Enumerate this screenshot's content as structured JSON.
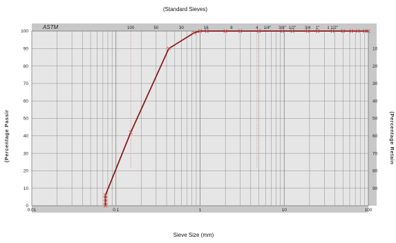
{
  "chart_data": {
    "type": "line",
    "title": "(Standard Sieves)",
    "xlabel": "Sieve Size (mm)",
    "ylabel_left": "(Percentage Passir",
    "ylabel_right": "(Percentage Retain",
    "top_label": "ASTM",
    "x_scale": "log",
    "xlim": [
      0.01,
      100
    ],
    "ylim": [
      0,
      100
    ],
    "grid": true,
    "x_tick_labels": [
      "0.01",
      "0.1",
      "1",
      "10",
      "100"
    ],
    "x_tick_values": [
      0.01,
      0.1,
      1,
      10,
      100
    ],
    "y_left_ticks": [
      "0",
      "10",
      "20",
      "30",
      "40",
      "50",
      "60",
      "70",
      "80",
      "90",
      "100"
    ],
    "y_left_values": [
      0,
      10,
      20,
      30,
      40,
      50,
      60,
      70,
      80,
      90,
      100
    ],
    "y_right_ticks": [
      "10",
      "20",
      "30",
      "40",
      "50",
      "60",
      "70",
      "80",
      "90"
    ],
    "y_right_values": [
      10,
      20,
      30,
      40,
      50,
      60,
      70,
      80,
      90
    ],
    "sieves": [
      {
        "label": "100",
        "size": 0.15
      },
      {
        "label": "50",
        "size": 0.3
      },
      {
        "label": "30",
        "size": 0.6
      },
      {
        "label": "16",
        "size": 1.18
      },
      {
        "label": "8",
        "size": 2.36
      },
      {
        "label": "4",
        "size": 4.75
      },
      {
        "label": "1/4\"",
        "size": 6.3
      },
      {
        "label": "3/8\"",
        "size": 9.5
      },
      {
        "label": "1/2\"",
        "size": 12.5
      },
      {
        "label": "3/4",
        "size": 19
      },
      {
        "label": "1\"",
        "size": 25
      },
      {
        "label": "1 1/2\"",
        "size": 37.5
      }
    ],
    "series": [
      {
        "values_x": [
          0.075,
          0.075,
          0.075,
          0.075,
          0.15,
          0.425,
          0.85,
          1.0,
          1.2,
          2.0,
          3.0,
          5.0,
          9.5,
          12.5,
          19,
          25,
          37.5,
          50,
          63,
          75,
          90,
          100
        ],
        "values_y": [
          0,
          2,
          4,
          6,
          42,
          90,
          99,
          100,
          100,
          100,
          100,
          100,
          100,
          100,
          100,
          100,
          100,
          100,
          100,
          100,
          100,
          100
        ]
      }
    ],
    "colors": {
      "line": "#8b1a1a",
      "marker": "#c84a4a",
      "plot_bg": "#e6e6e6",
      "grid": "#8a8a8a",
      "axis_band": "#c8c8c8",
      "dotted_ref": "#d06060"
    }
  }
}
